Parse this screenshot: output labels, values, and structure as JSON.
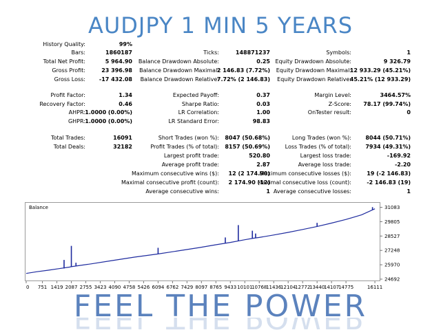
{
  "header": {
    "title": "AUDJPY 1 MIN 5 YEARS"
  },
  "stats": {
    "history_quality": {
      "label": "History Quality:",
      "value": "99%"
    },
    "bars": {
      "label": "Bars:",
      "value": "1860187"
    },
    "total_net_profit": {
      "label": "Total Net Profit:",
      "value": "5 964.90"
    },
    "gross_profit": {
      "label": "Gross Profit:",
      "value": "23 396.98"
    },
    "gross_loss": {
      "label": "Gross Loss:",
      "value": "-17 432.08"
    },
    "ticks": {
      "label": "Ticks:",
      "value": "148871237"
    },
    "balance_dd_abs": {
      "label": "Balance Drawdown Absolute:",
      "value": "0.25"
    },
    "balance_dd_max": {
      "label": "Balance Drawdown Maximal:",
      "value": "2 146.83 (7.72%)"
    },
    "balance_dd_rel": {
      "label": "Balance Drawdown Relative:",
      "value": "7.72% (2 146.83)"
    },
    "symbols": {
      "label": "Symbols:",
      "value": "1"
    },
    "equity_dd_abs": {
      "label": "Equity Drawdown Absolute:",
      "value": "9 326.79"
    },
    "equity_dd_max": {
      "label": "Equity Drawdown Maximal:",
      "value": "12 933.29 (45.21%)"
    },
    "equity_dd_rel": {
      "label": "Equity Drawdown Relative:",
      "value": "45.21% (12 933.29)"
    },
    "profit_factor": {
      "label": "Profit Factor:",
      "value": "1.34"
    },
    "recovery_factor": {
      "label": "Recovery Factor:",
      "value": "0.46"
    },
    "ahpr": {
      "label": "AHPR:",
      "value": "1.0000 (0.00%)"
    },
    "ghpr": {
      "label": "GHPR:",
      "value": "1.0000 (0.00%)"
    },
    "expected_payoff": {
      "label": "Expected Payoff:",
      "value": "0.37"
    },
    "sharpe_ratio": {
      "label": "Sharpe Ratio:",
      "value": "0.03"
    },
    "lr_correlation": {
      "label": "LR Correlation:",
      "value": "1.00"
    },
    "lr_std_error": {
      "label": "LR Standard Error:",
      "value": "98.83"
    },
    "margin_level": {
      "label": "Margin Level:",
      "value": "3464.57%"
    },
    "z_score": {
      "label": "Z-Score:",
      "value": "78.17 (99.74%)"
    },
    "ontester_result": {
      "label": "OnTester result:",
      "value": "0"
    },
    "total_trades": {
      "label": "Total Trades:",
      "value": "16091"
    },
    "total_deals": {
      "label": "Total Deals:",
      "value": "32182"
    },
    "short_trades": {
      "label": "Short Trades (won %):",
      "value": "8047 (50.68%)"
    },
    "profit_trades": {
      "label": "Profit Trades (% of total):",
      "value": "8157 (50.69%)"
    },
    "largest_profit": {
      "label": "Largest profit trade:",
      "value": "520.80"
    },
    "average_profit": {
      "label": "Average profit trade:",
      "value": "2.87"
    },
    "max_consec_wins": {
      "label": "Maximum consecutive wins ($):",
      "value": "12 (2 174.90)"
    },
    "maximal_consec_profit": {
      "label": "Maximal consecutive profit (count):",
      "value": "2 174.90 (12)"
    },
    "avg_consec_wins": {
      "label": "Average consecutive wins:",
      "value": "1"
    },
    "long_trades": {
      "label": "Long Trades (won %):",
      "value": "8044 (50.71%)"
    },
    "loss_trades": {
      "label": "Loss Trades (% of total):",
      "value": "7934 (49.31%)"
    },
    "largest_loss": {
      "label": "Largest loss trade:",
      "value": "-169.92"
    },
    "average_loss": {
      "label": "Average loss trade:",
      "value": "-2.20"
    },
    "max_consec_losses": {
      "label": "Maximum consecutive losses ($):",
      "value": "19 (-2 146.83)"
    },
    "maximal_consec_loss": {
      "label": "Maximal consecutive loss (count):",
      "value": "-2 146.83 (19)"
    },
    "avg_consec_losses": {
      "label": "Average consecutive losses:",
      "value": "1"
    }
  },
  "chart_data": {
    "type": "line",
    "title": "Balance",
    "xlabel": "",
    "ylabel": "",
    "x_ticks": [
      "0",
      "751",
      "1419",
      "2087",
      "2755",
      "3423",
      "4090",
      "4758",
      "5426",
      "6094",
      "6762",
      "7429",
      "8097",
      "8765",
      "9433",
      "10101",
      "10768",
      "11436",
      "12104",
      "12772",
      "13440",
      "14107",
      "14775",
      "16111"
    ],
    "y_ticks": [
      "31083",
      "29805",
      "28527",
      "27248",
      "25970",
      "24692"
    ],
    "xlim": [
      0,
      16300
    ],
    "ylim": [
      24692,
      31300
    ],
    "series": [
      {
        "color": "#1d2a9e",
        "x": [
          0,
          500,
          1000,
          1500,
          2000,
          2087,
          2200,
          3000,
          4000,
          5000,
          6094,
          7000,
          8000,
          8765,
          9433,
          10101,
          10500,
          10768,
          11436,
          12104,
          12772,
          13440,
          14107,
          14775,
          15500,
          16111
        ],
        "y": [
          25200,
          25350,
          25480,
          25620,
          25760,
          25800,
          25830,
          26050,
          26350,
          26650,
          26930,
          27200,
          27500,
          27750,
          27960,
          28200,
          28330,
          28400,
          28620,
          28850,
          29110,
          29380,
          29680,
          30000,
          30420,
          30950
        ]
      }
    ],
    "spikes": [
      {
        "x": 1750,
        "low": 25640,
        "high": 26400
      },
      {
        "x": 2087,
        "low": 25800,
        "high": 27650
      },
      {
        "x": 2300,
        "low": 25850,
        "high": 26150
      },
      {
        "x": 6094,
        "low": 26930,
        "high": 27480
      },
      {
        "x": 9200,
        "low": 27900,
        "high": 28400
      },
      {
        "x": 9800,
        "low": 28100,
        "high": 29500
      },
      {
        "x": 10450,
        "low": 28300,
        "high": 29000
      },
      {
        "x": 10600,
        "low": 28350,
        "high": 28750
      },
      {
        "x": 13440,
        "low": 29380,
        "high": 29700
      },
      {
        "x": 16000,
        "low": 30850,
        "high": 31100
      }
    ],
    "grid": false,
    "legend": "none"
  },
  "footer": {
    "slogan": "FEEL THE POWER"
  }
}
